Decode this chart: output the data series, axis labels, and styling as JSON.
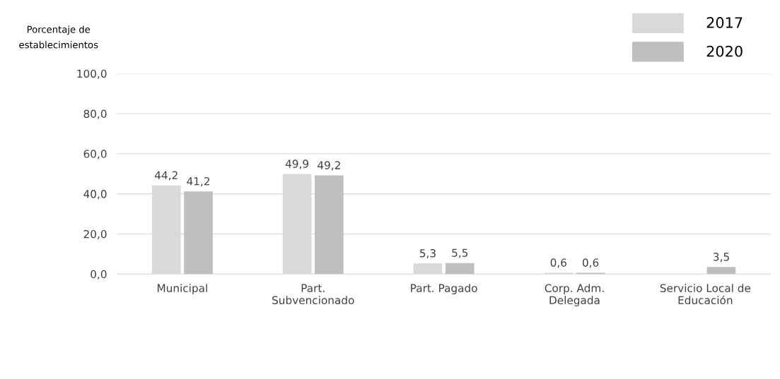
{
  "chart_data": {
    "type": "bar",
    "ylabel": "Porcentaje de\nestablecimientos",
    "categories": [
      "Municipal",
      "Part.\nSubvencionado",
      "Part. Pagado",
      "Corp. Adm.\nDelegada",
      "Servicio Local de\nEducación"
    ],
    "series": [
      {
        "name": "2017",
        "color": "#d9d9d9",
        "values": [
          44.2,
          49.9,
          5.3,
          0.6,
          null
        ],
        "value_labels": [
          "44,2",
          "49,9",
          "5,3",
          "0,6",
          null
        ]
      },
      {
        "name": "2020",
        "color": "#bfbfbf",
        "values": [
          41.2,
          49.2,
          5.5,
          0.6,
          3.5
        ],
        "value_labels": [
          "41,2",
          "49,2",
          "5,5",
          "0,6",
          "3,5"
        ]
      }
    ],
    "ylim": [
      0,
      100
    ],
    "yticks": [
      {
        "value": 0,
        "label": "0,0"
      },
      {
        "value": 20,
        "label": "20,0"
      },
      {
        "value": 40,
        "label": "40,0"
      },
      {
        "value": 60,
        "label": "60,0"
      },
      {
        "value": 80,
        "label": "80,0"
      },
      {
        "value": 100,
        "label": "100,0"
      }
    ],
    "grid": "y",
    "legend": "top right"
  }
}
